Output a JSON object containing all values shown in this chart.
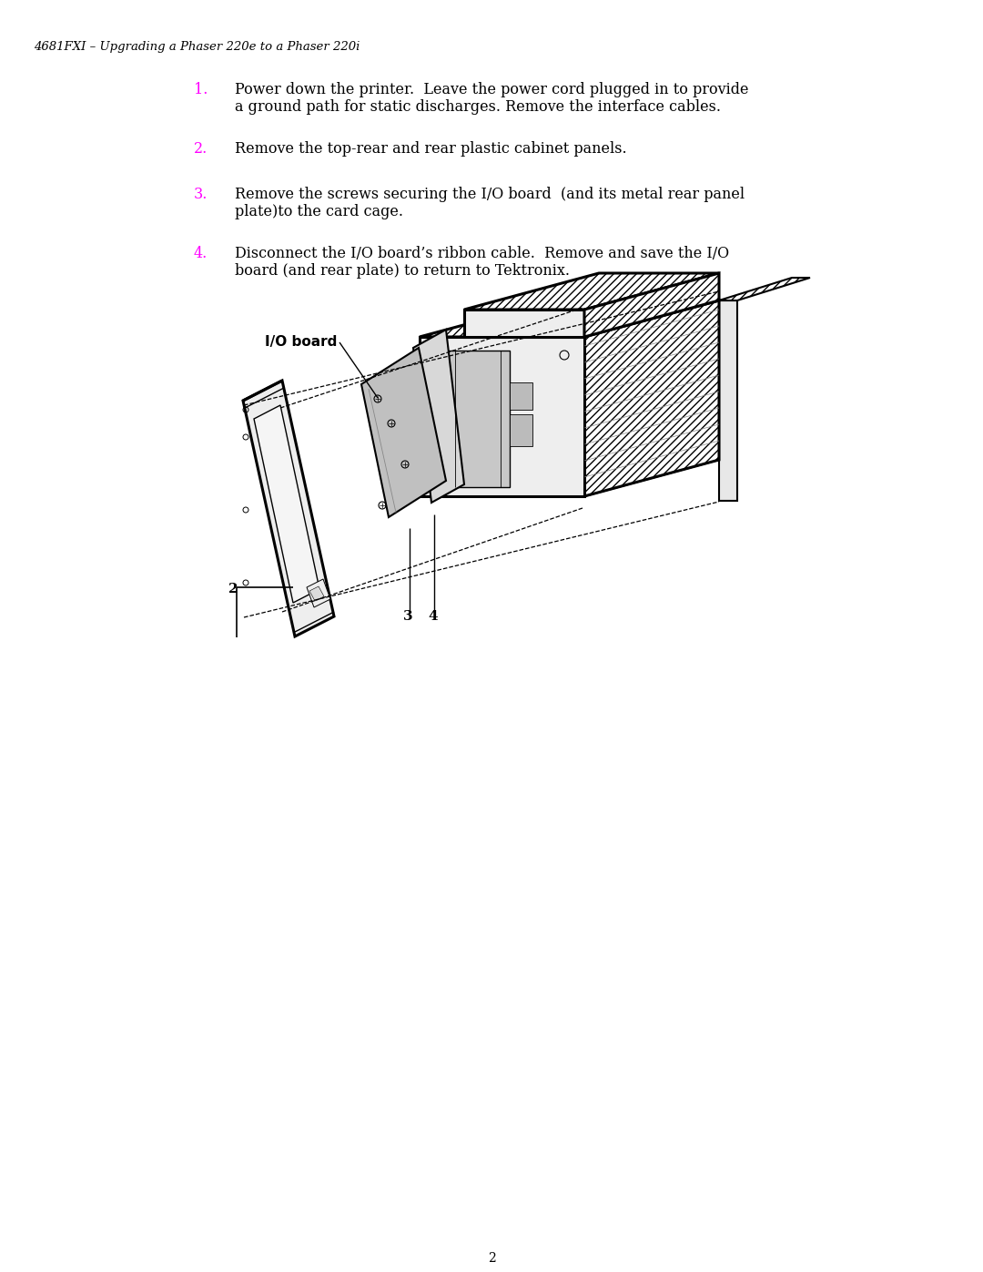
{
  "title": "4681FXI – Upgrading a Phaser 220e to a Phaser 220i",
  "page_number": "2",
  "bg": "#ffffff",
  "magenta": "#ff00ff",
  "black": "#000000",
  "steps": [
    {
      "num": "1.",
      "lines": [
        "Power down the printer.  Leave the power cord plugged in to provide",
        "a ground path for static discharges. Remove the interface cables."
      ]
    },
    {
      "num": "2.",
      "lines": [
        "Remove the top-rear and rear plastic cabinet panels."
      ]
    },
    {
      "num": "3.",
      "lines": [
        "Remove the screws securing the I/O board  (and its metal rear panel",
        "plate)to the card cage."
      ]
    },
    {
      "num": "4.",
      "lines": [
        "Disconnect the I/O board’s ribbon cable.  Remove and save the I/O",
        "board (and rear plate) to return to Tektronix."
      ]
    }
  ],
  "label_io": "I/O board",
  "lbl2": "2",
  "lbl3": "3",
  "lbl4": "4",
  "step_font_size": 11.5,
  "title_font_size": 9.5
}
